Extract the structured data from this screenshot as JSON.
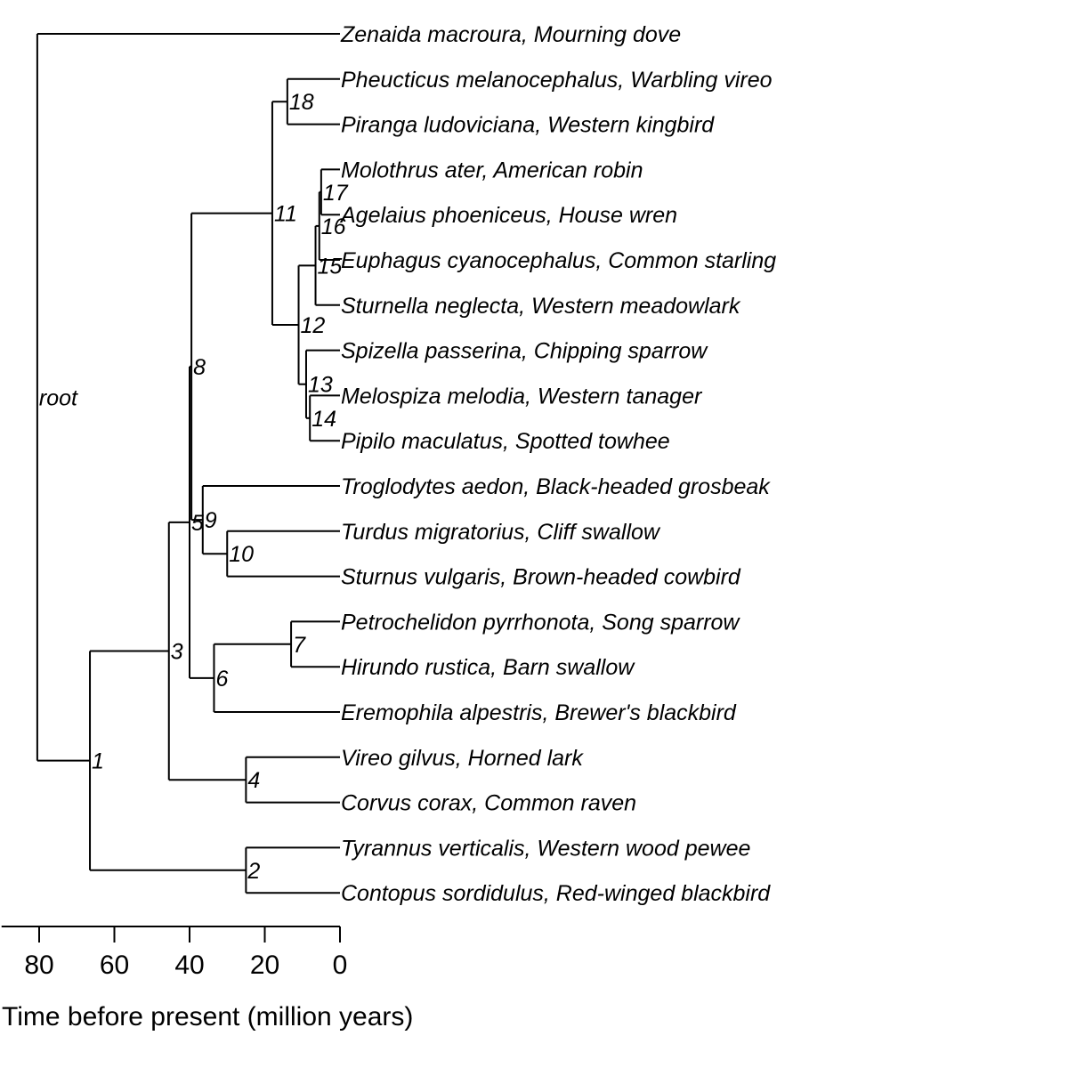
{
  "tree": {
    "tips": [
      "Zenaida macroura, Mourning dove",
      "Pheucticus melanocephalus, Warbling vireo",
      "Piranga ludoviciana, Western kingbird",
      "Molothrus ater, American robin",
      "Agelaius phoeniceus, House wren",
      "Euphagus cyanocephalus, Common starling",
      "Sturnella neglecta, Western meadowlark",
      "Spizella passerina, Chipping sparrow",
      "Melospiza melodia, Western tanager",
      "Pipilo maculatus, Spotted towhee",
      "Troglodytes aedon, Black-headed grosbeak",
      "Turdus migratorius, Cliff swallow",
      "Sturnus vulgaris, Brown-headed cowbird",
      "Petrochelidon pyrrhonota, Song sparrow",
      "Hirundo rustica, Barn swallow",
      "Eremophila alpestris, Brewer's blackbird",
      "Vireo gilvus, Horned lark",
      "Corvus corax, Common raven",
      "Tyrannus verticalis, Western wood pewee",
      "Contopus sordidulus, Red-winged blackbird"
    ],
    "nodes": [
      {
        "label": "root",
        "time": 80.5,
        "children": [
          "t0",
          "n1"
        ]
      },
      {
        "id": "n1",
        "label": "1",
        "time": 66.5,
        "children": [
          "n3",
          "n2"
        ]
      },
      {
        "id": "n2",
        "label": "2",
        "time": 25,
        "children": [
          "t18",
          "t19"
        ]
      },
      {
        "id": "n3",
        "label": "3",
        "time": 45.5,
        "children": [
          "n5",
          "n4"
        ]
      },
      {
        "id": "n4",
        "label": "4",
        "time": 25,
        "children": [
          "t16",
          "t17"
        ]
      },
      {
        "id": "n5",
        "label": "5",
        "time": 40,
        "children": [
          "n8",
          "n6"
        ]
      },
      {
        "id": "n6",
        "label": "6",
        "time": 33.5,
        "children": [
          "n7",
          "t15"
        ]
      },
      {
        "id": "n7",
        "label": "7",
        "time": 13,
        "children": [
          "t13",
          "t14"
        ]
      },
      {
        "id": "n8",
        "label": "8",
        "time": 39.5,
        "children": [
          "n11",
          "n9"
        ]
      },
      {
        "id": "n9",
        "label": "9",
        "time": 36.5,
        "children": [
          "t10",
          "n10"
        ]
      },
      {
        "id": "n10",
        "label": "10",
        "time": 30,
        "children": [
          "t11",
          "t12"
        ]
      },
      {
        "id": "n11",
        "label": "11",
        "time": 18,
        "children": [
          "n18",
          "n12"
        ]
      },
      {
        "id": "n12",
        "label": "12",
        "time": 11,
        "children": [
          "n15",
          "n13"
        ]
      },
      {
        "id": "n13",
        "label": "13",
        "time": 9,
        "children": [
          "t7",
          "n14"
        ]
      },
      {
        "id": "n14",
        "label": "14",
        "time": 8,
        "children": [
          "t8",
          "t9"
        ]
      },
      {
        "id": "n15",
        "label": "15",
        "time": 6.5,
        "children": [
          "n16",
          "t6"
        ]
      },
      {
        "id": "n16",
        "label": "16",
        "time": 5.5,
        "children": [
          "n17",
          "t5"
        ]
      },
      {
        "id": "n17",
        "label": "17",
        "time": 5,
        "children": [
          "t3",
          "t4"
        ]
      },
      {
        "id": "n18",
        "label": "18",
        "time": 14,
        "children": [
          "t1",
          "t2"
        ]
      }
    ]
  },
  "axis": {
    "ticks": [
      "80",
      "60",
      "40",
      "20",
      "0"
    ],
    "tick_values": [
      80,
      60,
      40,
      20,
      0
    ],
    "range": [
      90,
      0
    ],
    "title": "Time before present (million years)"
  }
}
